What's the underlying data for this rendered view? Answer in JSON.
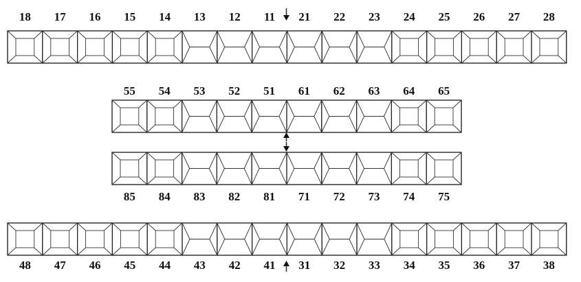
{
  "diagram": {
    "rows": [
      {
        "id": "permanent-upper",
        "teeth": [
          {
            "num": "18",
            "type": "molar"
          },
          {
            "num": "17",
            "type": "molar"
          },
          {
            "num": "16",
            "type": "molar"
          },
          {
            "num": "15",
            "type": "molar"
          },
          {
            "num": "14",
            "type": "molar"
          },
          {
            "num": "13",
            "type": "anterior"
          },
          {
            "num": "12",
            "type": "anterior"
          },
          {
            "num": "11",
            "type": "anterior"
          },
          {
            "num": "21",
            "type": "anterior"
          },
          {
            "num": "22",
            "type": "anterior"
          },
          {
            "num": "23",
            "type": "anterior"
          },
          {
            "num": "24",
            "type": "molar"
          },
          {
            "num": "25",
            "type": "molar"
          },
          {
            "num": "26",
            "type": "molar"
          },
          {
            "num": "27",
            "type": "molar"
          },
          {
            "num": "28",
            "type": "molar"
          }
        ]
      },
      {
        "id": "primary-upper",
        "teeth": [
          {
            "num": "55",
            "type": "molar"
          },
          {
            "num": "54",
            "type": "molar"
          },
          {
            "num": "53",
            "type": "anterior"
          },
          {
            "num": "52",
            "type": "anterior"
          },
          {
            "num": "51",
            "type": "anterior"
          },
          {
            "num": "61",
            "type": "anterior"
          },
          {
            "num": "62",
            "type": "anterior"
          },
          {
            "num": "63",
            "type": "anterior"
          },
          {
            "num": "64",
            "type": "molar"
          },
          {
            "num": "65",
            "type": "molar"
          }
        ]
      },
      {
        "id": "primary-lower",
        "teeth": [
          {
            "num": "85",
            "type": "molar"
          },
          {
            "num": "84",
            "type": "molar"
          },
          {
            "num": "83",
            "type": "anterior"
          },
          {
            "num": "82",
            "type": "anterior"
          },
          {
            "num": "81",
            "type": "anterior"
          },
          {
            "num": "71",
            "type": "anterior"
          },
          {
            "num": "72",
            "type": "anterior"
          },
          {
            "num": "73",
            "type": "anterior"
          },
          {
            "num": "74",
            "type": "molar"
          },
          {
            "num": "75",
            "type": "molar"
          }
        ]
      },
      {
        "id": "permanent-lower",
        "teeth": [
          {
            "num": "48",
            "type": "molar"
          },
          {
            "num": "47",
            "type": "molar"
          },
          {
            "num": "46",
            "type": "molar"
          },
          {
            "num": "45",
            "type": "molar"
          },
          {
            "num": "44",
            "type": "molar"
          },
          {
            "num": "43",
            "type": "anterior"
          },
          {
            "num": "42",
            "type": "anterior"
          },
          {
            "num": "41",
            "type": "anterior"
          },
          {
            "num": "31",
            "type": "anterior"
          },
          {
            "num": "32",
            "type": "anterior"
          },
          {
            "num": "33",
            "type": "anterior"
          },
          {
            "num": "34",
            "type": "molar"
          },
          {
            "num": "35",
            "type": "molar"
          },
          {
            "num": "36",
            "type": "molar"
          },
          {
            "num": "37",
            "type": "molar"
          },
          {
            "num": "38",
            "type": "molar"
          }
        ]
      }
    ],
    "colors": {
      "stroke": "#222222",
      "background": "#ffffff"
    }
  }
}
